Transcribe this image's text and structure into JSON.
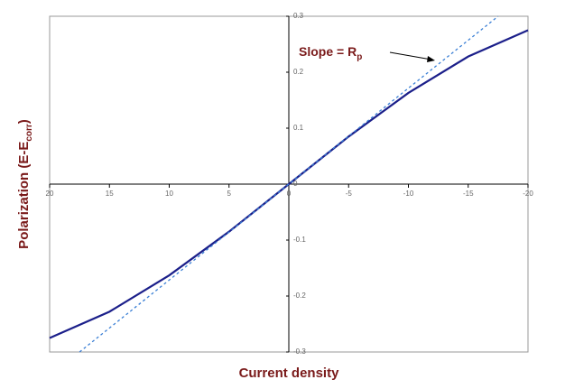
{
  "chart_data": {
    "type": "line",
    "xlabel": "Current density",
    "ylabel": [
      "Polarization (E-E",
      "corr",
      ")"
    ],
    "annotation": [
      "Slope = R",
      "p"
    ],
    "xlim": [
      20,
      -20
    ],
    "xticks": [
      20,
      15,
      10,
      5,
      0,
      -5,
      -10,
      -15,
      -20
    ],
    "ylim": [
      -0.3,
      0.3
    ],
    "yticks": [
      -0.3,
      -0.2,
      -0.1,
      0,
      0.1,
      0.2,
      0.3
    ],
    "series": [
      {
        "color": "#1b1f8a",
        "dashed": false,
        "x": [
          20,
          15,
          10,
          5,
          0,
          -5,
          -10,
          -15,
          -20
        ],
        "values": [
          -0.275,
          -0.228,
          -0.163,
          -0.085,
          0,
          0.085,
          0.163,
          0.228,
          0.275
        ]
      },
      {
        "color": "#3a7fd5",
        "dashed": true,
        "x": [
          17.5,
          -17.5
        ],
        "values": [
          -0.3,
          0.3
        ]
      }
    ]
  }
}
